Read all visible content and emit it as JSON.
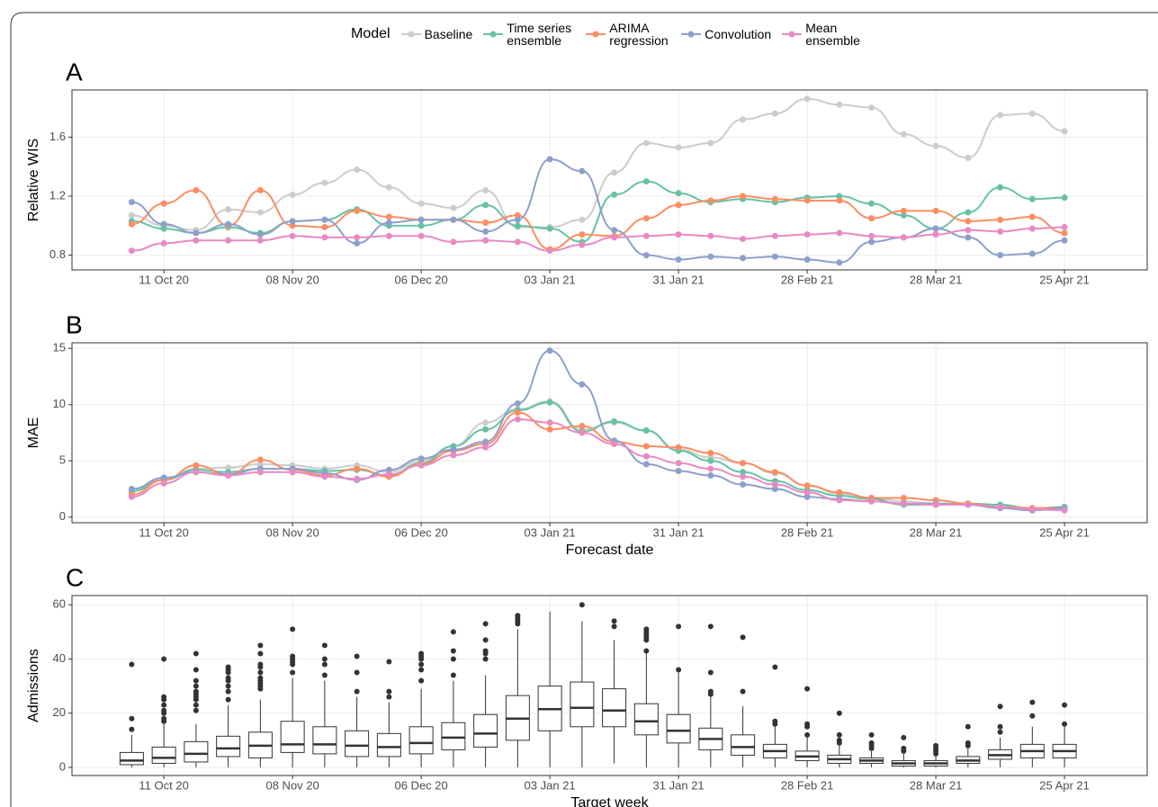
{
  "chart_data": [
    {
      "type": "line",
      "panel_label": "A",
      "legend_title": "Model",
      "ylabel": "Relative WIS",
      "x": [
        "2020-10-04",
        "2020-10-11",
        "2020-10-18",
        "2020-10-25",
        "2020-11-01",
        "2020-11-08",
        "2020-11-15",
        "2020-11-22",
        "2020-11-29",
        "2020-12-06",
        "2020-12-13",
        "2020-12-20",
        "2020-12-27",
        "2021-01-03",
        "2021-01-10",
        "2021-01-17",
        "2021-01-24",
        "2021-01-31",
        "2021-02-07",
        "2021-02-14",
        "2021-02-21",
        "2021-02-28",
        "2021-03-07",
        "2021-03-14",
        "2021-03-21",
        "2021-03-28",
        "2021-04-04",
        "2021-04-11",
        "2021-04-18",
        "2021-04-25"
      ],
      "xlim": [
        "2020-09-21",
        "2021-05-13"
      ],
      "xticks": [
        {
          "value": "2020-10-11",
          "label": "11 Oct 20"
        },
        {
          "value": "2020-11-08",
          "label": "08 Nov 20"
        },
        {
          "value": "2020-12-06",
          "label": "06 Dec 20"
        },
        {
          "value": "2021-01-03",
          "label": "03 Jan 21"
        },
        {
          "value": "2021-01-31",
          "label": "31 Jan 21"
        },
        {
          "value": "2021-02-28",
          "label": "28 Feb 21"
        },
        {
          "value": "2021-03-28",
          "label": "28 Mar 21"
        },
        {
          "value": "2021-04-25",
          "label": "25 Apr 21"
        }
      ],
      "ylim": [
        0.7,
        1.92
      ],
      "yticks": [
        0.8,
        1.2,
        1.6
      ],
      "grid": true,
      "series": [
        {
          "name": "Baseline",
          "color": "#cccccc",
          "values": [
            1.07,
            1.0,
            0.97,
            1.11,
            1.09,
            1.21,
            1.29,
            1.38,
            1.26,
            1.15,
            1.12,
            1.24,
            0.99,
            0.99,
            1.04,
            1.36,
            1.56,
            1.53,
            1.56,
            1.72,
            1.76,
            1.86,
            1.82,
            1.8,
            1.62,
            1.54,
            1.46,
            1.75,
            1.76,
            1.64
          ]
        },
        {
          "name": "Time series ensemble",
          "color": "#66c2a5",
          "values": [
            1.03,
            0.98,
            0.95,
            0.99,
            0.95,
            1.03,
            1.04,
            1.11,
            1.0,
            1.0,
            1.04,
            1.14,
            1.0,
            0.98,
            0.89,
            1.21,
            1.3,
            1.22,
            1.16,
            1.18,
            1.16,
            1.19,
            1.2,
            1.15,
            1.07,
            0.98,
            1.09,
            1.26,
            1.18,
            1.19
          ]
        },
        {
          "name": "ARIMA regression",
          "color": "#fc8d62",
          "values": [
            1.01,
            1.15,
            1.24,
            1.0,
            1.24,
            1.0,
            0.99,
            1.1,
            1.06,
            1.04,
            1.04,
            1.02,
            1.07,
            0.84,
            0.94,
            0.93,
            1.05,
            1.14,
            1.17,
            1.2,
            1.18,
            1.17,
            1.17,
            1.05,
            1.1,
            1.1,
            1.03,
            1.04,
            1.06,
            0.95
          ]
        },
        {
          "name": "Convolution",
          "color": "#8da0cb",
          "values": [
            1.16,
            1.01,
            0.95,
            1.01,
            0.94,
            1.03,
            1.04,
            0.88,
            1.02,
            1.04,
            1.04,
            0.96,
            1.04,
            1.45,
            1.37,
            0.97,
            0.8,
            0.77,
            0.79,
            0.78,
            0.79,
            0.77,
            0.75,
            0.89,
            0.92,
            0.98,
            0.92,
            0.8,
            0.81,
            0.9
          ]
        },
        {
          "name": "Mean ensemble",
          "color": "#e78ac3",
          "values": [
            0.83,
            0.88,
            0.9,
            0.9,
            0.9,
            0.93,
            0.92,
            0.92,
            0.93,
            0.93,
            0.89,
            0.9,
            0.89,
            0.83,
            0.87,
            0.92,
            0.93,
            0.94,
            0.93,
            0.91,
            0.93,
            0.94,
            0.95,
            0.93,
            0.92,
            0.94,
            0.97,
            0.96,
            0.98,
            0.99
          ]
        }
      ]
    },
    {
      "type": "line",
      "panel_label": "B",
      "ylabel": "MAE",
      "xlabel": "Forecast date",
      "x": [
        "2020-10-04",
        "2020-10-11",
        "2020-10-18",
        "2020-10-25",
        "2020-11-01",
        "2020-11-08",
        "2020-11-15",
        "2020-11-22",
        "2020-11-29",
        "2020-12-06",
        "2020-12-13",
        "2020-12-20",
        "2020-12-27",
        "2021-01-03",
        "2021-01-10",
        "2021-01-17",
        "2021-01-24",
        "2021-01-31",
        "2021-02-07",
        "2021-02-14",
        "2021-02-21",
        "2021-02-28",
        "2021-03-07",
        "2021-03-14",
        "2021-03-21",
        "2021-03-28",
        "2021-04-04",
        "2021-04-11",
        "2021-04-18",
        "2021-04-25"
      ],
      "xlim": [
        "2020-09-21",
        "2021-05-13"
      ],
      "xticks": [
        {
          "value": "2020-10-11",
          "label": "11 Oct 20"
        },
        {
          "value": "2020-11-08",
          "label": "08 Nov 20"
        },
        {
          "value": "2020-12-06",
          "label": "06 Dec 20"
        },
        {
          "value": "2021-01-03",
          "label": "03 Jan 21"
        },
        {
          "value": "2021-01-31",
          "label": "31 Jan 21"
        },
        {
          "value": "2021-02-28",
          "label": "28 Feb 21"
        },
        {
          "value": "2021-03-28",
          "label": "28 Mar 21"
        },
        {
          "value": "2021-04-25",
          "label": "25 Apr 21"
        }
      ],
      "ylim": [
        -0.5,
        15.5
      ],
      "yticks": [
        0,
        5,
        10,
        15
      ],
      "grid": true,
      "series": [
        {
          "name": "Baseline",
          "color": "#cccccc",
          "values": [
            2.5,
            3.3,
            4.3,
            4.4,
            4.7,
            4.6,
            4.3,
            4.6,
            4.0,
            5.0,
            6.3,
            8.4,
            9.6,
            10.3,
            7.8,
            8.4,
            7.7,
            6.0,
            5.3,
            4.8,
            3.9,
            2.8,
            2.1,
            1.7,
            1.4,
            1.2,
            1.2,
            1.1,
            0.8,
            0.9
          ]
        },
        {
          "name": "Time series ensemble",
          "color": "#66c2a5",
          "values": [
            2.3,
            3.3,
            4.2,
            4.0,
            4.3,
            4.3,
            4.1,
            4.2,
            3.7,
            4.8,
            6.3,
            7.8,
            9.5,
            10.2,
            7.6,
            8.5,
            7.7,
            5.9,
            5.0,
            4.0,
            3.2,
            2.4,
            1.9,
            1.6,
            1.1,
            1.1,
            1.2,
            1.1,
            0.7,
            0.9
          ]
        },
        {
          "name": "ARIMA regression",
          "color": "#fc8d62",
          "values": [
            2.0,
            3.3,
            4.6,
            3.8,
            5.1,
            4.2,
            3.7,
            4.3,
            3.6,
            4.7,
            5.9,
            6.5,
            9.3,
            7.8,
            8.1,
            6.7,
            6.3,
            6.2,
            5.7,
            4.8,
            4.0,
            2.8,
            2.2,
            1.7,
            1.7,
            1.5,
            1.2,
            0.9,
            0.8,
            0.8
          ]
        },
        {
          "name": "Convolution",
          "color": "#8da0cb",
          "values": [
            2.5,
            3.5,
            4.0,
            3.8,
            4.3,
            4.3,
            3.9,
            3.3,
            4.2,
            5.2,
            6.0,
            6.7,
            10.1,
            14.8,
            11.8,
            6.8,
            4.7,
            4.1,
            3.7,
            2.9,
            2.5,
            1.8,
            1.6,
            1.4,
            1.2,
            1.2,
            1.1,
            0.8,
            0.6,
            0.8
          ]
        },
        {
          "name": "Mean ensemble",
          "color": "#e78ac3",
          "values": [
            1.8,
            3.0,
            4.0,
            3.7,
            4.0,
            4.0,
            3.6,
            3.4,
            3.8,
            4.6,
            5.5,
            6.2,
            8.7,
            8.4,
            7.5,
            6.5,
            5.4,
            4.8,
            4.3,
            3.6,
            2.9,
            2.2,
            1.5,
            1.4,
            1.2,
            1.1,
            1.1,
            0.9,
            0.7,
            0.6
          ]
        }
      ]
    },
    {
      "type": "box",
      "panel_label": "C",
      "ylabel": "Admissions",
      "xlabel": "Target week",
      "x": [
        "2020-10-04",
        "2020-10-11",
        "2020-10-18",
        "2020-10-25",
        "2020-11-01",
        "2020-11-08",
        "2020-11-15",
        "2020-11-22",
        "2020-11-29",
        "2020-12-06",
        "2020-12-13",
        "2020-12-20",
        "2020-12-27",
        "2021-01-03",
        "2021-01-10",
        "2021-01-17",
        "2021-01-24",
        "2021-01-31",
        "2021-02-07",
        "2021-02-14",
        "2021-02-21",
        "2021-02-28",
        "2021-03-07",
        "2021-03-14",
        "2021-03-21",
        "2021-03-28",
        "2021-04-04",
        "2021-04-11",
        "2021-04-18",
        "2021-04-25"
      ],
      "xlim": [
        "2020-09-21",
        "2021-05-13"
      ],
      "xticks": [
        {
          "value": "2020-10-11",
          "label": "11 Oct 20"
        },
        {
          "value": "2020-11-08",
          "label": "08 Nov 20"
        },
        {
          "value": "2020-12-06",
          "label": "06 Dec 20"
        },
        {
          "value": "2021-01-03",
          "label": "03 Jan 21"
        },
        {
          "value": "2021-01-31",
          "label": "31 Jan 21"
        },
        {
          "value": "2021-02-28",
          "label": "28 Feb 21"
        },
        {
          "value": "2021-03-28",
          "label": "28 Mar 21"
        },
        {
          "value": "2021-04-25",
          "label": "25 Apr 21"
        }
      ],
      "ylim": [
        -3,
        63.4
      ],
      "yticks": [
        0,
        20,
        40,
        60
      ],
      "grid": true,
      "boxes": [
        [
          0,
          1,
          2.5,
          5.5,
          12
        ],
        [
          0,
          1.5,
          3.5,
          7.5,
          16
        ],
        [
          0,
          2,
          5,
          9.5,
          16
        ],
        [
          0,
          4,
          7,
          11.5,
          23
        ],
        [
          0,
          3.5,
          8,
          13,
          25
        ],
        [
          0,
          5.5,
          8.5,
          17,
          33
        ],
        [
          0,
          5,
          8.5,
          15,
          32
        ],
        [
          0,
          4,
          8,
          13.5,
          26
        ],
        [
          0,
          4,
          7.5,
          12.5,
          24
        ],
        [
          0,
          5,
          9,
          15,
          29
        ],
        [
          0,
          6.5,
          11,
          16.5,
          32
        ],
        [
          0,
          7.5,
          12.5,
          19.5,
          34
        ],
        [
          0,
          10,
          18,
          26.5,
          51
        ],
        [
          0,
          13.5,
          21.5,
          30,
          57.5
        ],
        [
          0,
          15,
          22,
          31.5,
          54
        ],
        [
          1.5,
          15,
          21,
          29,
          47
        ],
        [
          0,
          12,
          17,
          23.5,
          42
        ],
        [
          0,
          9,
          13.5,
          19.5,
          35
        ],
        [
          0,
          6.5,
          10.5,
          14.5,
          26
        ],
        [
          0,
          4.5,
          7.5,
          12,
          22.5
        ],
        [
          0,
          3.5,
          6,
          8.5,
          15.5
        ],
        [
          0,
          2.5,
          4,
          6,
          11
        ],
        [
          0,
          1.5,
          3,
          4.5,
          8
        ],
        [
          0,
          1.5,
          2.5,
          3.5,
          6
        ],
        [
          0,
          0.5,
          1.5,
          2.5,
          5
        ],
        [
          0,
          0.5,
          1.5,
          2.5,
          4.5
        ],
        [
          0,
          1.5,
          2.5,
          4,
          7
        ],
        [
          0,
          3,
          4.5,
          6.5,
          11
        ],
        [
          0,
          3.5,
          6,
          8.5,
          15
        ],
        [
          0,
          3.5,
          6,
          8.5,
          15
        ]
      ],
      "fliers": [
        [
          14,
          18,
          38
        ],
        [
          17,
          18,
          20,
          21,
          23,
          25,
          26,
          40
        ],
        [
          21,
          23,
          25,
          26,
          27,
          28,
          30,
          32,
          36,
          42
        ],
        [
          25,
          28,
          30,
          32,
          33,
          35,
          36,
          37
        ],
        [
          29,
          30,
          31,
          32,
          33,
          35,
          37,
          38,
          42,
          45
        ],
        [
          35,
          38,
          39,
          40,
          41,
          51
        ],
        [
          34,
          38,
          40,
          45
        ],
        [
          28,
          35,
          41
        ],
        [
          26,
          28,
          39
        ],
        [
          32,
          36,
          38,
          40,
          41,
          42
        ],
        [
          34,
          40,
          43,
          50
        ],
        [
          40,
          42,
          43,
          47,
          53
        ],
        [
          53,
          54,
          55,
          56
        ],
        [],
        [
          60
        ],
        [
          52,
          54
        ],
        [
          43,
          47,
          48,
          49,
          50,
          51
        ],
        [
          36,
          52
        ],
        [
          27,
          28,
          35,
          52
        ],
        [
          28,
          48
        ],
        [
          16,
          17,
          37
        ],
        [
          12,
          15,
          16,
          29
        ],
        [
          9,
          10,
          12,
          20
        ],
        [
          7,
          8,
          9,
          12
        ],
        [
          6,
          7,
          11
        ],
        [
          5,
          6,
          7,
          8
        ],
        [
          8,
          9,
          15
        ],
        [
          13,
          15,
          22.5
        ],
        [
          19,
          24
        ],
        [
          16,
          23
        ]
      ]
    }
  ]
}
